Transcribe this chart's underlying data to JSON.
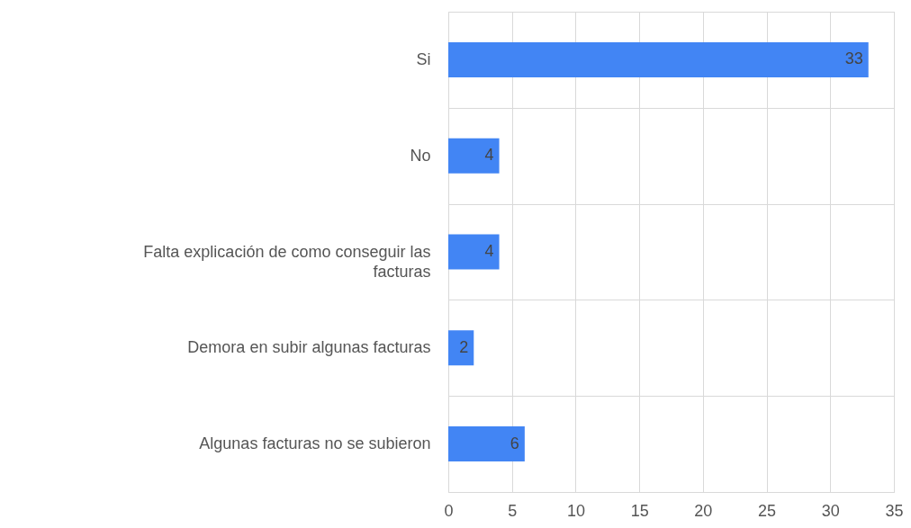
{
  "chart_data": {
    "type": "bar",
    "orientation": "horizontal",
    "categories": [
      "Si",
      "No",
      "Falta explicación de como conseguir las facturas",
      "Demora en subir algunas facturas",
      "Algunas facturas no se subieron"
    ],
    "values": [
      33,
      4,
      4,
      2,
      6
    ],
    "color": "#4285f4",
    "xlim": [
      0,
      35
    ],
    "xticks": [
      0,
      5,
      10,
      15,
      20,
      25,
      30,
      35
    ],
    "grid": true,
    "data_labels": true
  }
}
